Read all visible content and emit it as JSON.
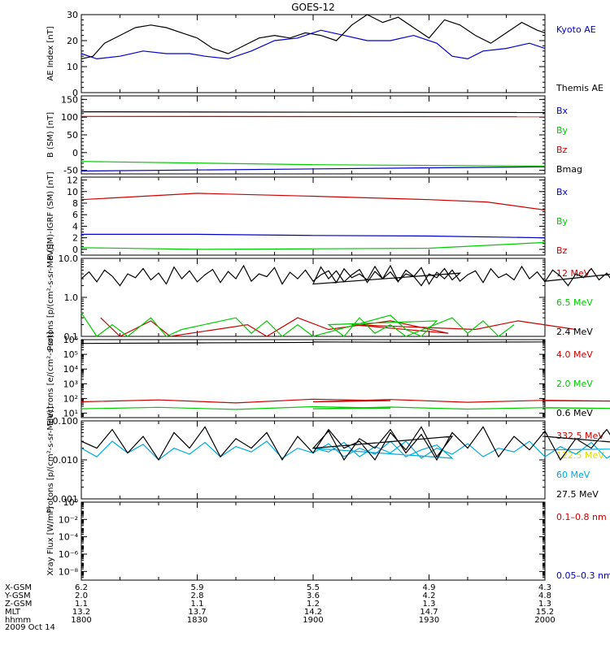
{
  "title": "GOES-12",
  "chart_data": [
    {
      "type": "line",
      "ylabel": "AE Index [nT]",
      "scale": "linear",
      "ylim": [
        0,
        30
      ],
      "y_ticks": [
        "0",
        "10",
        "20",
        "30"
      ],
      "y_tick_values": [
        0,
        10,
        20,
        30
      ],
      "minor_step": 2,
      "grid": false,
      "x_time_hhmm": [
        "1800",
        "1830",
        "1900",
        "1930",
        "2000"
      ],
      "series": [
        {
          "name": "Kyoto AE",
          "color": "#0000cc",
          "x": [
            1800,
            1804,
            1810,
            1816,
            1822,
            1828,
            1832,
            1838,
            1844,
            1850,
            1856,
            1902,
            1908,
            1914,
            1920,
            1926,
            1932,
            1936,
            1940,
            1944,
            1950,
            1956,
            2000
          ],
          "y": [
            15,
            13,
            14,
            16,
            15,
            15,
            14,
            13,
            16,
            20,
            21,
            24,
            22,
            20,
            20,
            22,
            19,
            14,
            13,
            16,
            17,
            19,
            17
          ]
        },
        {
          "name": "Themis AE",
          "color": "#000000",
          "x": [
            1800,
            1803,
            1806,
            1810,
            1814,
            1818,
            1822,
            1826,
            1830,
            1834,
            1838,
            1842,
            1846,
            1850,
            1854,
            1858,
            1902,
            1906,
            1910,
            1914,
            1918,
            1922,
            1926,
            1930,
            1934,
            1938,
            1942,
            1946,
            1950,
            1954,
            1958,
            2000
          ],
          "y": [
            13,
            14,
            19,
            22,
            25,
            26,
            25,
            23,
            21,
            17,
            15,
            18,
            21,
            22,
            21,
            23,
            22,
            20,
            26,
            30,
            27,
            29,
            25,
            21,
            28,
            26,
            22,
            19,
            23,
            27,
            24,
            23
          ]
        }
      ]
    },
    {
      "type": "line",
      "ylabel": "B (SM) [nT]",
      "scale": "linear",
      "ylim": [
        -60,
        160
      ],
      "y_ticks": [
        "-50",
        "0",
        "50",
        "100",
        "150"
      ],
      "y_tick_values": [
        -50,
        0,
        50,
        100,
        150
      ],
      "minor_step": 10,
      "grid": false,
      "series": [
        {
          "name": "Bx",
          "color": "#0000cc",
          "x": [
            1800,
            2000
          ],
          "y": [
            -52,
            -40
          ]
        },
        {
          "name": "By",
          "color": "#00cc00",
          "x": [
            1800,
            1900,
            2000
          ],
          "y": [
            -25,
            -34,
            -38
          ]
        },
        {
          "name": "Bz",
          "color": "#cc0000",
          "x": [
            1800,
            2000
          ],
          "y": [
            102,
            101
          ]
        },
        {
          "name": "Bmag",
          "color": "#000000",
          "x": [
            1800,
            2000
          ],
          "y": [
            115,
            113
          ]
        }
      ]
    },
    {
      "type": "line",
      "ylabel": "B (SM)-IGRF (SM) [nT]",
      "scale": "linear",
      "ylim": [
        -1,
        12.5
      ],
      "y_ticks": [
        "0",
        "2",
        "4",
        "6",
        "8",
        "10",
        "12"
      ],
      "y_tick_values": [
        0,
        2,
        4,
        6,
        8,
        10,
        12
      ],
      "minor_step": 0.5,
      "grid": false,
      "series": [
        {
          "name": "Bx",
          "color": "#0000cc",
          "x": [
            1800,
            1830,
            1900,
            1930,
            2000
          ],
          "y": [
            2.6,
            2.6,
            2.4,
            2.3,
            2.0
          ]
        },
        {
          "name": "By",
          "color": "#00cc00",
          "x": [
            1800,
            1830,
            1900,
            1930,
            2000
          ],
          "y": [
            0.3,
            0.0,
            0.1,
            0.2,
            1.2
          ]
        },
        {
          "name": "Bz",
          "color": "#cc0000",
          "x": [
            1800,
            1830,
            1900,
            1930,
            1945,
            2000
          ],
          "y": [
            8.6,
            9.7,
            9.2,
            8.6,
            8.2,
            6.8
          ]
        }
      ]
    },
    {
      "type": "line",
      "ylabel": "Protons [p/(cm²-s-sr-MeV)]",
      "scale": "log",
      "ylim": [
        0.1,
        10
      ],
      "y_ticks": [
        "0.1",
        "1.0",
        "10.0"
      ],
      "y_tick_values": [
        0.1,
        1,
        10
      ],
      "grid": false,
      "series": [
        {
          "name": "12 MeV",
          "color": "#cc0000",
          "x": [
            1805,
            1810,
            1818,
            1823,
            1843,
            1848,
            1856,
            1864,
            1880,
            1895,
            1910,
            1942,
            1953,
            1968
          ],
          "y": [
            0.3,
            0.1,
            0.25,
            0.1,
            0.2,
            0.1,
            0.3,
            0.15,
            0.25,
            0.12,
            0.2,
            0.15,
            0.25,
            0.15
          ]
        },
        {
          "name": "6.5 MeV",
          "color": "#00cc00",
          "x": [
            1800,
            1804,
            1808,
            1812,
            1818,
            1822,
            1826,
            1840,
            1844,
            1848,
            1852,
            1856,
            1860,
            1880,
            1884,
            1888,
            1892,
            1904,
            1908,
            1912,
            1916,
            1920,
            1924,
            1936,
            1940,
            1944,
            1948,
            1952
          ],
          "y": [
            0.4,
            0.1,
            0.2,
            0.1,
            0.3,
            0.1,
            0.15,
            0.3,
            0.12,
            0.25,
            0.1,
            0.2,
            0.1,
            0.35,
            0.15,
            0.1,
            0.25,
            0.2,
            0.1,
            0.3,
            0.12,
            0.2,
            0.1,
            0.3,
            0.12,
            0.25,
            0.1,
            0.2
          ]
        },
        {
          "name": "2.4 MeV",
          "color": "#000000",
          "x": [
            1800,
            1802,
            1804,
            1806,
            1808,
            1810,
            1812,
            1814,
            1816,
            1818,
            1820,
            1822,
            1824,
            1826,
            1828,
            1830,
            1832,
            1834,
            1836,
            1838,
            1840,
            1842,
            1844,
            1846,
            1848,
            1850,
            1852,
            1854,
            1856,
            1858,
            1860,
            1862,
            1864,
            1866,
            1868,
            1870,
            1872,
            1874,
            1876,
            1878,
            1880,
            1882,
            1884,
            1886,
            1888,
            1890,
            1892,
            1894,
            1896,
            1898,
            1900,
            1902,
            1904,
            1906,
            1908,
            1910,
            1912,
            1914,
            1916,
            1918,
            1920,
            1922,
            1924,
            1926,
            1928,
            1930,
            1932,
            1934,
            1936,
            1938,
            1940,
            1942,
            1944,
            1946,
            1948,
            1950,
            1952,
            1954,
            1956,
            1958,
            1960,
            1962,
            1964,
            1966,
            1968,
            1970,
            1972,
            1974,
            1976,
            1978,
            1980,
            1982,
            1984,
            1986,
            1988,
            1990,
            1992,
            1994,
            1996,
            1998,
            2000
          ],
          "y": [
            3.0,
            4.5,
            2.5,
            5.0,
            3.5,
            2.0,
            4.0,
            3.2,
            5.5,
            2.8,
            4.2,
            2.2,
            6.0,
            3.0,
            4.8,
            2.5,
            3.8,
            5.2,
            2.4,
            4.6,
            3.0,
            6.5,
            2.6,
            4.0,
            3.4,
            5.8,
            2.2,
            4.4,
            3.0,
            5.0,
            2.6,
            3.8,
            4.8,
            2.4,
            5.4,
            3.2,
            4.0,
            2.8,
            6.2,
            3.0,
            4.5,
            2.5,
            5.0,
            3.5,
            2.0,
            4.0,
            3.2,
            5.5,
            2.8,
            4.2,
            2.2,
            6.0,
            3.0,
            4.8,
            2.5,
            3.8,
            5.2,
            2.4,
            4.6,
            3.0,
            6.5,
            2.6,
            4.0,
            3.4,
            5.8,
            2.2,
            4.4,
            3.0,
            5.0,
            2.6,
            3.8,
            4.8,
            2.4,
            5.4,
            3.2,
            4.0,
            2.8,
            6.2,
            3.0,
            4.5,
            2.5,
            5.0,
            3.5,
            2.0,
            4.0,
            3.2,
            5.5,
            2.8,
            4.2,
            2.2,
            6.0,
            3.0,
            4.8,
            2.5,
            3.8,
            5.2,
            2.4,
            4.6,
            3.0,
            6.5,
            2.6
          ]
        }
      ]
    },
    {
      "type": "line",
      "ylabel": "Electrons [e/(cm²-s-sr)]",
      "scale": "log",
      "ylim": [
        5,
        1000000.0
      ],
      "y_ticks": [
        "10¹",
        "10²",
        "10³",
        "10⁴",
        "10⁵",
        "10⁶"
      ],
      "y_tick_values": [
        10,
        100,
        1000,
        10000,
        100000,
        1000000
      ],
      "grid": false,
      "series": [
        {
          "name": "4.0 MeV",
          "color": "#cc0000",
          "x": [
            1800,
            1820,
            1840,
            1860,
            1880,
            1900,
            1920,
            1940,
            1960,
            1980,
            2000
          ],
          "y": [
            60,
            80,
            50,
            90,
            70,
            60,
            85,
            55,
            75,
            65,
            70
          ]
        },
        {
          "name": "2.0 MeV",
          "color": "#00cc00",
          "x": [
            1800,
            1820,
            1840,
            1860,
            1880,
            1900,
            1920,
            1940,
            1960,
            1980,
            2000
          ],
          "y": [
            20,
            25,
            18,
            28,
            22,
            20,
            26,
            19,
            24,
            21,
            23
          ]
        },
        {
          "name": "0.6 MeV",
          "color": "#000000",
          "x": [
            1800,
            1830,
            1860,
            1900,
            1930,
            1960,
            2000
          ],
          "y": [
            550000,
            600000,
            650000,
            700000,
            650000,
            700000,
            750000
          ]
        }
      ]
    },
    {
      "type": "line",
      "ylabel": "Protons [p/(cm²-s-sr-MeV)]",
      "scale": "log",
      "ylim": [
        0.001,
        0.1
      ],
      "y_ticks": [
        "0.001",
        "0.010",
        "0.100"
      ],
      "y_tick_values": [
        0.001,
        0.01,
        0.1
      ],
      "grid": false,
      "series": [
        {
          "name": "332.5 MeV",
          "color": "#cc0000",
          "x": [],
          "y": []
        },
        {
          "name": "122.5 MeV",
          "color": "#dddd00",
          "x": [],
          "y": []
        },
        {
          "name": "60 MeV",
          "color": "#00aadd",
          "x": [
            1800,
            1804,
            1808,
            1812,
            1816,
            1820,
            1824,
            1828,
            1832,
            1836,
            1840,
            1844,
            1848,
            1852,
            1856,
            1860,
            1864,
            1868,
            1872,
            1876,
            1880,
            1884,
            1888,
            1892,
            1896,
            1900,
            1904,
            1908,
            1912,
            1916,
            1920,
            1924,
            1928,
            1932,
            1936,
            1940,
            1944,
            1948,
            1952,
            1956,
            1960,
            1964,
            1968,
            1972,
            1976,
            1980,
            1984,
            1988,
            1992,
            1996,
            2000
          ],
          "y": [
            0.02,
            0.012,
            0.03,
            0.015,
            0.025,
            0.01,
            0.02,
            0.014,
            0.028,
            0.012,
            0.022,
            0.016,
            0.03,
            0.011,
            0.02,
            0.015,
            0.026,
            0.012,
            0.02,
            0.014,
            0.03,
            0.012,
            0.018,
            0.024,
            0.011,
            0.02,
            0.016,
            0.028,
            0.012,
            0.022,
            0.015,
            0.03,
            0.011,
            0.02,
            0.014,
            0.026,
            0.012,
            0.02,
            0.016,
            0.03,
            0.012,
            0.022,
            0.014,
            0.028,
            0.011,
            0.02,
            0.015,
            0.026,
            0.012,
            0.02,
            0.018
          ]
        },
        {
          "name": "27.5 MeV",
          "color": "#000000",
          "x": [
            1800,
            1804,
            1808,
            1812,
            1816,
            1820,
            1824,
            1828,
            1832,
            1836,
            1840,
            1844,
            1848,
            1852,
            1856,
            1860,
            1864,
            1868,
            1872,
            1876,
            1880,
            1884,
            1888,
            1892,
            1896,
            1900,
            1904,
            1908,
            1912,
            1916,
            1920,
            1924,
            1928,
            1932,
            1936,
            1940,
            1944,
            1948,
            1952,
            1956,
            1960,
            1964,
            1968,
            1972,
            1976,
            1980,
            1984,
            1988,
            1992,
            1996,
            2000
          ],
          "y": [
            0.03,
            0.02,
            0.06,
            0.015,
            0.04,
            0.01,
            0.05,
            0.02,
            0.07,
            0.012,
            0.035,
            0.02,
            0.05,
            0.01,
            0.04,
            0.015,
            0.06,
            0.02,
            0.03,
            0.01,
            0.05,
            0.018,
            0.07,
            0.012,
            0.04,
            0.02,
            0.055,
            0.01,
            0.035,
            0.02,
            0.06,
            0.015,
            0.045,
            0.01,
            0.05,
            0.02,
            0.07,
            0.012,
            0.04,
            0.018,
            0.055,
            0.01,
            0.035,
            0.02,
            0.06,
            0.015,
            0.045,
            0.012,
            0.05,
            0.02,
            0.04
          ]
        }
      ]
    },
    {
      "type": "line",
      "ylabel": "Xray Flux [W/m²]",
      "scale": "log",
      "ylim": [
        1e-09,
        1
      ],
      "y_ticks": [
        "10⁻⁸",
        "10⁻⁶",
        "10⁻⁴",
        "10⁻²",
        "10⁰"
      ],
      "y_tick_values": [
        1e-08,
        1e-06,
        0.0001,
        0.01,
        1
      ],
      "grid": false,
      "series": [
        {
          "name": "0.1–0.8 nm",
          "color": "#cc0000",
          "x": [],
          "y": []
        },
        {
          "name": "0.05–0.3 nm",
          "color": "#0000cc",
          "x": [],
          "y": []
        }
      ]
    }
  ],
  "footer": {
    "rows": [
      {
        "label": "X-GSM",
        "values": [
          "6.2",
          "5.9",
          "5.5",
          "4.9",
          "4.3"
        ]
      },
      {
        "label": "Y-GSM",
        "values": [
          "2.0",
          "2.8",
          "3.6",
          "4.2",
          "4.8"
        ]
      },
      {
        "label": "Z-GSM",
        "values": [
          "1.1",
          "1.1",
          "1.2",
          "1.3",
          "1.3"
        ]
      },
      {
        "label": "MLT",
        "values": [
          "13.2",
          "13.7",
          "14.2",
          "14.7",
          "15.2"
        ]
      },
      {
        "label": "hhmm",
        "values": [
          "1800",
          "1830",
          "1900",
          "1930",
          "2000"
        ]
      }
    ],
    "date": "2009 Oct 14"
  }
}
